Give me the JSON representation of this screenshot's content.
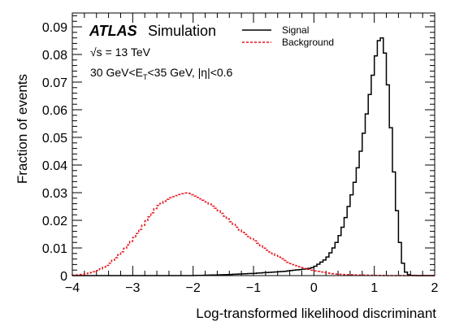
{
  "chart_data": {
    "type": "line",
    "xlabel": "Log-transformed likelihood discriminant",
    "ylabel": "Fraction of events",
    "xlim": [
      -4,
      2
    ],
    "ylim": [
      0,
      0.095
    ],
    "x_ticks": [
      "−4",
      "−3",
      "−2",
      "−1",
      "0",
      "1",
      "2"
    ],
    "y_ticks": [
      "0",
      "0.01",
      "0.02",
      "0.03",
      "0.04",
      "0.05",
      "0.06",
      "0.07",
      "0.08",
      "0.09"
    ],
    "x_tick_values": [
      -4,
      -3,
      -2,
      -1,
      0,
      1,
      2
    ],
    "y_tick_values": [
      0,
      0.01,
      0.02,
      0.03,
      0.04,
      0.05,
      0.06,
      0.07,
      0.08,
      0.09
    ],
    "annotations": {
      "atlas": "ATLAS",
      "simulation": "Simulation",
      "energy": "√s = 13 TeV",
      "selection": "30 GeV<E",
      "selection_sub": "T",
      "selection_rest": "<35 GeV, |η|<0.6"
    },
    "legend_position": "top-center",
    "series": [
      {
        "name": "Signal",
        "style": "solid",
        "color": "#000000",
        "x": [
          -2.0,
          -1.5,
          -1.0,
          -0.5,
          -0.3,
          -0.1,
          0.0,
          0.1,
          0.2,
          0.3,
          0.4,
          0.5,
          0.6,
          0.7,
          0.8,
          0.9,
          1.0,
          1.05,
          1.1,
          1.15,
          1.2,
          1.25,
          1.3,
          1.35,
          1.4,
          1.45,
          1.5,
          1.55,
          1.6,
          1.7
        ],
        "values": [
          0.0,
          0.0003,
          0.0008,
          0.0015,
          0.002,
          0.0025,
          0.003,
          0.0045,
          0.006,
          0.009,
          0.013,
          0.019,
          0.027,
          0.036,
          0.048,
          0.062,
          0.076,
          0.083,
          0.087,
          0.085,
          0.076,
          0.062,
          0.045,
          0.03,
          0.017,
          0.007,
          0.002,
          0.0005,
          0.0001,
          0.0
        ]
      },
      {
        "name": "Background",
        "style": "dashed",
        "color": "#e8141c",
        "x": [
          -4.0,
          -3.8,
          -3.6,
          -3.4,
          -3.2,
          -3.0,
          -2.8,
          -2.6,
          -2.4,
          -2.2,
          -2.1,
          -2.0,
          -1.8,
          -1.6,
          -1.4,
          -1.2,
          -1.0,
          -0.8,
          -0.6,
          -0.4,
          -0.2,
          0.0,
          0.2,
          0.4,
          0.6,
          0.8,
          1.0,
          1.2
        ],
        "values": [
          0.0001,
          0.0005,
          0.0015,
          0.004,
          0.008,
          0.013,
          0.019,
          0.025,
          0.028,
          0.0295,
          0.03,
          0.029,
          0.027,
          0.024,
          0.02,
          0.016,
          0.013,
          0.0095,
          0.007,
          0.0045,
          0.003,
          0.0018,
          0.001,
          0.0005,
          0.0003,
          0.0002,
          0.0001,
          0.0
        ]
      }
    ]
  }
}
